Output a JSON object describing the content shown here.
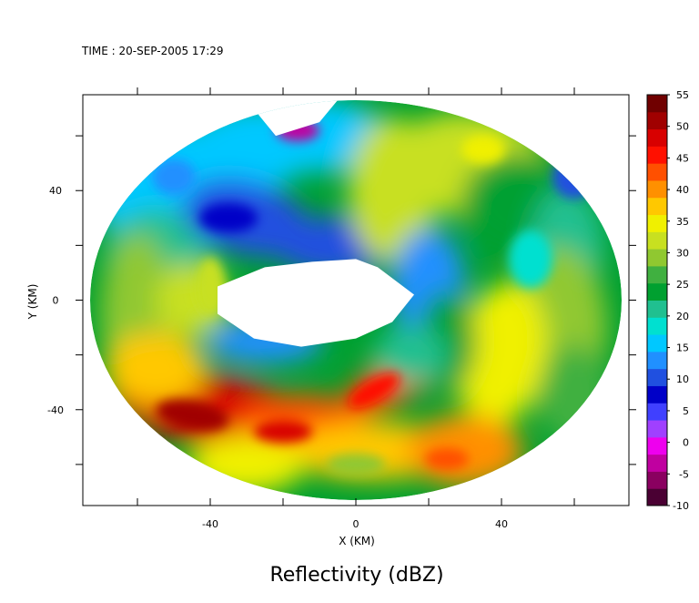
{
  "header": {
    "time_label": "TIME : 20-SEP-2005 17:29"
  },
  "chart_data": {
    "type": "heatmap",
    "title": "Reflectivity (dBZ)",
    "xlabel": "X (KM)",
    "ylabel": "Y (KM)",
    "xlim": [
      -75,
      75
    ],
    "ylim": [
      -75,
      75
    ],
    "x_ticks": [
      -40,
      0,
      40
    ],
    "y_ticks": [
      -40,
      0,
      40
    ],
    "grid": false,
    "colorbar": {
      "label_values": [
        "55",
        "50",
        "45",
        "40",
        "35",
        "30",
        "25",
        "20",
        "15",
        "10",
        "5",
        "0",
        "-5",
        "-10"
      ],
      "range": [
        -10,
        55
      ],
      "colors": [
        "#4a0033",
        "#8a0060",
        "#c000a0",
        "#ee00ee",
        "#a040ff",
        "#4040ff",
        "#0000c8",
        "#2050e0",
        "#2090ff",
        "#00c8ff",
        "#00e0d0",
        "#20c090",
        "#00a030",
        "#40b040",
        "#90c830",
        "#c8e020",
        "#f0f000",
        "#ffc800",
        "#ff9000",
        "#ff5000",
        "#ff1000",
        "#d80000",
        "#a00000",
        "#700000"
      ]
    },
    "domain": {
      "shape": "ellipse",
      "center": [
        0,
        0
      ],
      "radius_km": [
        73,
        73
      ]
    },
    "features": [
      {
        "name": "echo-free eye",
        "center_km": [
          -12,
          2
        ],
        "dbz": null
      },
      {
        "name": "inner blue ring",
        "center_km": [
          -5,
          10
        ],
        "dbz": 12
      },
      {
        "name": "northwest band",
        "center_km": [
          -40,
          35
        ],
        "dbz": 20
      },
      {
        "name": "northeast band",
        "center_km": [
          30,
          40
        ],
        "dbz": 32
      },
      {
        "name": "east band",
        "center_km": [
          50,
          -5
        ],
        "dbz": 30
      },
      {
        "name": "southwest rainband",
        "center_km": [
          -35,
          -42
        ],
        "dbz": 48
      },
      {
        "name": "southern band",
        "center_km": [
          10,
          -55
        ],
        "dbz": 38
      },
      {
        "name": "north magenta patch",
        "center_km": [
          -15,
          50
        ],
        "dbz": -2
      }
    ]
  }
}
